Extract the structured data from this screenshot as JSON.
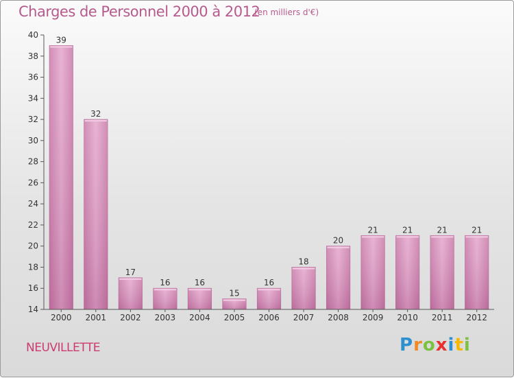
{
  "header": {
    "title": "Charges de Personnel 2000 à 2012",
    "subtitle": "(en milliers d'€)"
  },
  "footer": {
    "city": "NEUVILLETTE",
    "logo_letters": [
      {
        "ch": "P",
        "color": "#2b8fd0"
      },
      {
        "ch": "r",
        "color": "#f08a24"
      },
      {
        "ch": "o",
        "color": "#7cc142"
      },
      {
        "ch": "x",
        "color": "#e8312f"
      },
      {
        "ch": "i",
        "color": "#2b8fd0"
      },
      {
        "ch": "t",
        "color": "#f5b800"
      },
      {
        "ch": "i",
        "color": "#7cc142"
      }
    ]
  },
  "chart_data": {
    "type": "bar",
    "categories": [
      "2000",
      "2001",
      "2002",
      "2003",
      "2004",
      "2005",
      "2006",
      "2007",
      "2008",
      "2009",
      "2010",
      "2011",
      "2012"
    ],
    "values": [
      39,
      32,
      17,
      16,
      16,
      15,
      16,
      18,
      20,
      21,
      21,
      21,
      21
    ],
    "ylim": [
      14,
      40
    ],
    "yticks": [
      14,
      16,
      18,
      20,
      22,
      24,
      26,
      28,
      30,
      32,
      34,
      36,
      38,
      40
    ],
    "grid": false,
    "bar_color": "#d98cb9"
  }
}
